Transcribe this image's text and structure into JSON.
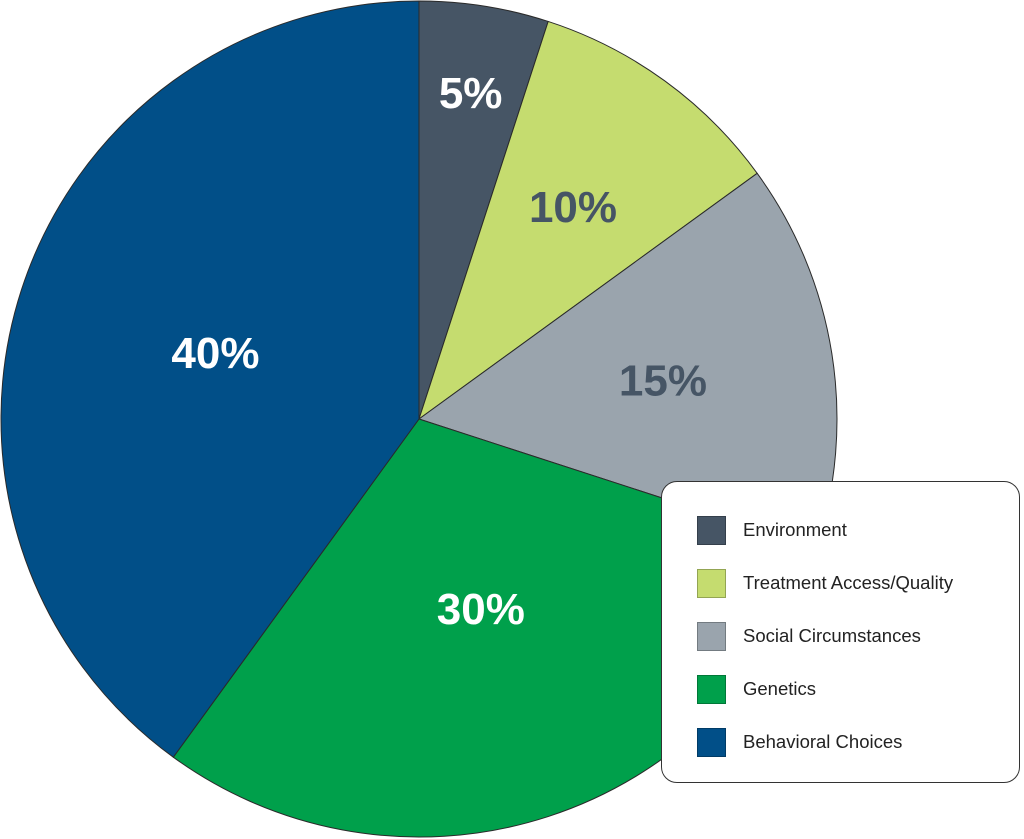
{
  "chart_data": {
    "type": "pie",
    "start": "top, clockwise",
    "legend_position": "bottom-right",
    "slices": [
      {
        "name": "Environment",
        "value": 5,
        "label": "5%",
        "color": "#465565",
        "label_color": "#ffffff"
      },
      {
        "name": "Treatment Access/Quality",
        "value": 10,
        "label": "10%",
        "color": "#c5dc6f",
        "label_color": "#465565"
      },
      {
        "name": "Social Circumstances",
        "value": 15,
        "label": "15%",
        "color": "#9aa4ad",
        "label_color": "#465565"
      },
      {
        "name": "Genetics",
        "value": 30,
        "label": "30%",
        "color": "#00a04b",
        "label_color": "#ffffff"
      },
      {
        "name": "Behavioral Choices",
        "value": 40,
        "label": "40%",
        "color": "#014f88",
        "label_color": "#ffffff"
      }
    ]
  }
}
